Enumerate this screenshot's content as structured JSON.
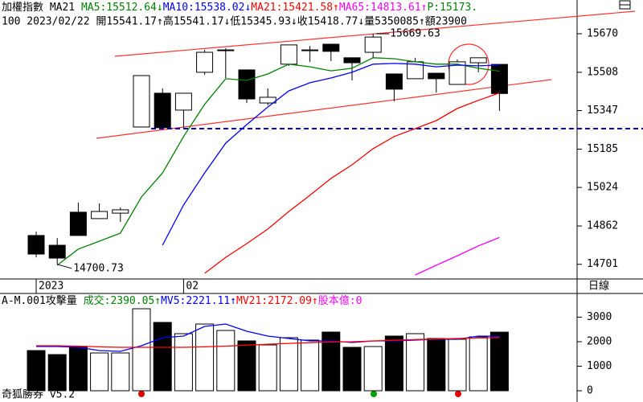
{
  "chart_data": {
    "type": "candlestick",
    "header": {
      "line1": [
        {
          "text": "加權指數 MA21 ",
          "color": "#000000"
        },
        {
          "text": "MA5:15512.64↓",
          "color": "#008000"
        },
        {
          "text": "MA10:15538.02↓",
          "color": "#0000ff"
        },
        {
          "text": "MA21:15421.58↑",
          "color": "#ff0000"
        },
        {
          "text": "MA65:14813.61↑",
          "color": "#ff00ff"
        },
        {
          "text": "P:15173.",
          "color": "#008000"
        }
      ],
      "line2": "100 2023/02/22 開15541.17↑高15541.17↓低15345.93↓收15418.77↓量5350085↑額23900"
    },
    "period_label": "日線",
    "footer": "奇狐勝券 v5.2",
    "categories": [
      "2023",
      null,
      null,
      null,
      null,
      null,
      null,
      "02",
      null,
      null,
      null,
      null,
      null,
      null,
      null,
      null,
      null,
      null,
      null,
      null,
      null,
      null,
      null
    ],
    "candles": [
      {
        "open": 14822,
        "high": 14838,
        "low": 14730,
        "close": 14744
      },
      {
        "open": 14781,
        "high": 14811,
        "low": 14700.73,
        "close": 14727
      },
      {
        "open": 14920,
        "high": 14960,
        "low": 14822,
        "close": 14822
      },
      {
        "open": 14893,
        "high": 14957,
        "low": 14893,
        "close": 14923
      },
      {
        "open": 14916,
        "high": 14940,
        "low": 14879,
        "close": 14930
      },
      {
        "open": 15278,
        "high": 15494,
        "low": 15278,
        "close": 15494
      },
      {
        "open": 15420,
        "high": 15440,
        "low": 15275,
        "close": 15275
      },
      {
        "open": 15349,
        "high": 15420,
        "low": 15275,
        "close": 15420
      },
      {
        "open": 15508,
        "high": 15602,
        "low": 15498,
        "close": 15592
      },
      {
        "open": 15599,
        "high": 15609,
        "low": 15484,
        "close": 15602
      },
      {
        "open": 15518,
        "high": 15518,
        "low": 15379,
        "close": 15396
      },
      {
        "open": 15379,
        "high": 15440,
        "low": 15369,
        "close": 15403
      },
      {
        "open": 15542,
        "high": 15623,
        "low": 15535,
        "close": 15623
      },
      {
        "open": 15599,
        "high": 15619,
        "low": 15552,
        "close": 15602
      },
      {
        "open": 15626,
        "high": 15626,
        "low": 15555,
        "close": 15596
      },
      {
        "open": 15569,
        "high": 15569,
        "low": 15474,
        "close": 15548
      },
      {
        "open": 15592,
        "high": 15669.63,
        "low": 15569,
        "close": 15656
      },
      {
        "open": 15501,
        "high": 15501,
        "low": 15386,
        "close": 15437
      },
      {
        "open": 15481,
        "high": 15569,
        "low": 15481,
        "close": 15552
      },
      {
        "open": 15504,
        "high": 15504,
        "low": 15423,
        "close": 15481
      },
      {
        "open": 15457,
        "high": 15562,
        "low": 15457,
        "close": 15552
      },
      {
        "open": 15548,
        "high": 15569,
        "low": 15508,
        "close": 15569
      },
      {
        "open": 15541.17,
        "high": 15541.17,
        "low": 15345.93,
        "close": 15418.77
      }
    ],
    "series": [
      {
        "name": "MA5",
        "color": "#008000",
        "values": [
          null,
          14697,
          14765,
          14798,
          14832,
          14984,
          15085,
          15238,
          15373,
          15481,
          15474,
          15501,
          15542,
          15531,
          15514,
          15525,
          15569,
          15565,
          15552,
          15542,
          15542,
          15525,
          15512.64
        ]
      },
      {
        "name": "MA10",
        "color": "#0000ff",
        "values": [
          null,
          null,
          null,
          null,
          null,
          null,
          14781,
          14950,
          15085,
          15210,
          15288,
          15362,
          15430,
          15464,
          15484,
          15508,
          15542,
          15545,
          15542,
          15531,
          15538,
          15535,
          15538.02
        ]
      },
      {
        "name": "MA21",
        "color": "#ff0000",
        "values": [
          null,
          null,
          null,
          null,
          null,
          null,
          null,
          null,
          14663,
          14730,
          14788,
          14849,
          14923,
          14991,
          15062,
          15119,
          15187,
          15238,
          15271,
          15305,
          15356,
          15390,
          15421.58
        ]
      },
      {
        "name": "MA65",
        "color": "#ff00ff",
        "values": [
          null,
          null,
          null,
          null,
          null,
          null,
          null,
          null,
          null,
          null,
          null,
          null,
          null,
          null,
          null,
          null,
          null,
          null,
          14656,
          14697,
          14737,
          14778,
          14813.61
        ]
      }
    ],
    "ylim": [
      14646,
      15805
    ],
    "yticks": [
      15670,
      15508,
      15347,
      15185,
      15024,
      14862,
      14701
    ],
    "volume": {
      "header": [
        {
          "text": "A-M.001攻擊量 ",
          "color": "#000000"
        },
        {
          "text": "成交:2390.05↑",
          "color": "#008000"
        },
        {
          "text": "MV5:2221.11↑",
          "color": "#0000ff"
        },
        {
          "text": "MV21:2172.09↑",
          "color": "#ff0000"
        },
        {
          "text": "股本億:0",
          "color": "#ff00ff"
        }
      ],
      "values": [
        1639,
        1475,
        1803,
        1541,
        1541,
        3344,
        2787,
        2328,
        2721,
        2459,
        2033,
        1869,
        2164,
        2066,
        2393,
        1770,
        1803,
        2230,
        2328,
        2131,
        2098,
        2197,
        2390.05
      ],
      "series": [
        {
          "name": "MV5",
          "color": "#0000ff",
          "values": [
            1803,
            1803,
            1770,
            1639,
            1607,
            1836,
            2164,
            2230,
            2623,
            2721,
            2426,
            2230,
            2131,
            2033,
            2033,
            1967,
            2033,
            2033,
            2066,
            2098,
            2098,
            2230,
            2221.11
          ]
        },
        {
          "name": "MV21",
          "color": "#ff0000",
          "values": [
            1836,
            1836,
            1820,
            1790,
            1770,
            1770,
            1770,
            1770,
            1790,
            1820,
            1860,
            1900,
            1930,
            1960,
            1990,
            2000,
            2030,
            2060,
            2090,
            2110,
            2130,
            2150,
            2172.09
          ]
        }
      ],
      "ylim": [
        0,
        3902
      ],
      "yticks": [
        3000,
        2000,
        1000,
        0
      ]
    }
  }
}
